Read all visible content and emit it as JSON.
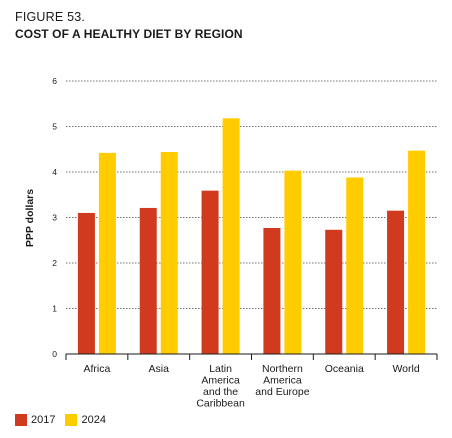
{
  "figure": {
    "label": "FIGURE 53.",
    "title": "COST OF A HEALTHY DIET BY REGION"
  },
  "chart_data": {
    "type": "bar",
    "title": "COST OF A HEALTHY DIET BY REGION",
    "ylabel": "PPP dollars",
    "xlabel": "",
    "ylim": [
      0,
      6
    ],
    "yticks": [
      0,
      1,
      2,
      3,
      4,
      5,
      6
    ],
    "grid": true,
    "legend_position": "bottom-left",
    "categories": [
      [
        "Africa"
      ],
      [
        "Asia"
      ],
      [
        "Latin",
        "America",
        "and the",
        "Caribbean"
      ],
      [
        "Northern",
        "America",
        "and Europe"
      ],
      [
        "Oceania"
      ],
      [
        "World"
      ]
    ],
    "series": [
      {
        "name": "2017",
        "color": "#d03a1e",
        "values": [
          3.1,
          3.21,
          3.59,
          2.77,
          2.73,
          3.15
        ]
      },
      {
        "name": "2024",
        "color": "#ffcc00",
        "values": [
          4.42,
          4.44,
          5.18,
          4.03,
          3.88,
          4.47
        ]
      }
    ]
  }
}
